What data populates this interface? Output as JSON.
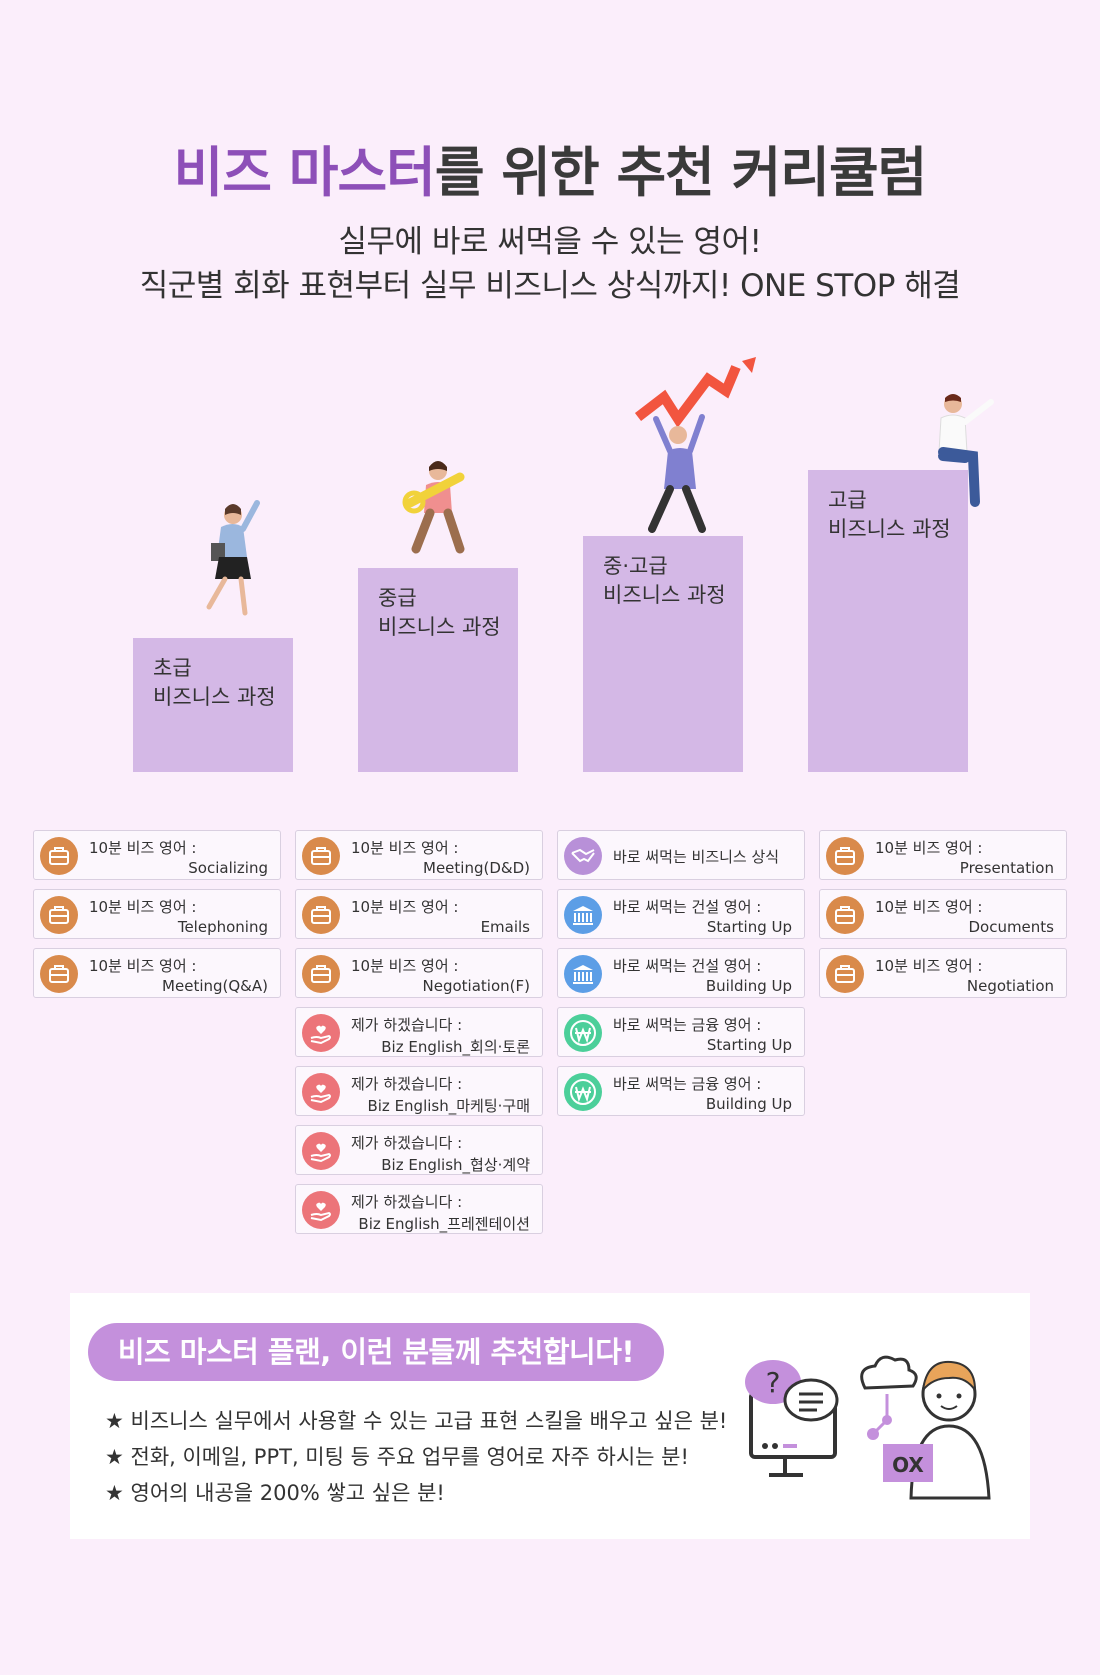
{
  "header": {
    "title_accent": "비즈 마스터",
    "title_rest": "를 위한 추천 커리큘럼",
    "subtitle_line1": "실무에 바로 써먹을 수 있는 영어!",
    "subtitle_line2": "직군별 회화 표현부터 실무 비즈니스 상식까지! ONE STOP 해결"
  },
  "levels": [
    {
      "label": "초급\n비즈니스 과정"
    },
    {
      "label": "중급\n비즈니스 과정"
    },
    {
      "label": "중·고급\n비즈니스 과정"
    },
    {
      "label": "고급\n비즈니스 과정"
    }
  ],
  "columns": [
    {
      "cards": [
        {
          "icon": "briefcase-icon",
          "color": "#d98a4b",
          "line1": "10분 비즈 영어 :",
          "line2": "Socializing"
        },
        {
          "icon": "briefcase-icon",
          "color": "#d98a4b",
          "line1": "10분 비즈 영어 :",
          "line2": "Telephoning"
        },
        {
          "icon": "briefcase-icon",
          "color": "#d98a4b",
          "line1": "10분 비즈 영어 :",
          "line2": "Meeting(Q&A)"
        }
      ]
    },
    {
      "cards": [
        {
          "icon": "briefcase-icon",
          "color": "#d98a4b",
          "line1": "10분 비즈 영어 :",
          "line2": "Meeting(D&D)"
        },
        {
          "icon": "briefcase-icon",
          "color": "#d98a4b",
          "line1": "10분 비즈 영어 :",
          "line2": "Emails"
        },
        {
          "icon": "briefcase-icon",
          "color": "#d98a4b",
          "line1": "10분 비즈 영어 :",
          "line2": "Negotiation(F)"
        },
        {
          "icon": "hand-heart-icon",
          "color": "#ec7479",
          "line1": "제가 하겠습니다 :",
          "line2": "Biz English_회의·토론"
        },
        {
          "icon": "hand-heart-icon",
          "color": "#ec7479",
          "line1": "제가 하겠습니다 :",
          "line2": "Biz English_마케팅·구매"
        },
        {
          "icon": "hand-heart-icon",
          "color": "#ec7479",
          "line1": "제가 하겠습니다 :",
          "line2": "Biz English_협상·계약"
        },
        {
          "icon": "hand-heart-icon",
          "color": "#ec7479",
          "line1": "제가 하겠습니다 :",
          "line2": "Biz English_프레젠테이션"
        }
      ]
    },
    {
      "cards": [
        {
          "icon": "handshake-icon",
          "color": "#b890d8",
          "line1": "바로 써먹는 비즈니스 상식",
          "line2": ""
        },
        {
          "icon": "bank-icon",
          "color": "#5c9ee6",
          "line1": "바로 써먹는 건설 영어 :",
          "line2": "Starting Up"
        },
        {
          "icon": "bank-icon",
          "color": "#5c9ee6",
          "line1": "바로 써먹는 건설 영어 :",
          "line2": "Building Up"
        },
        {
          "icon": "won-icon",
          "color": "#4ccf9a",
          "line1": "바로 써먹는 금융 영어 :",
          "line2": "Starting Up"
        },
        {
          "icon": "won-icon",
          "color": "#4ccf9a",
          "line1": "바로 써먹는 금융 영어 :",
          "line2": "Building Up"
        }
      ]
    },
    {
      "cards": [
        {
          "icon": "briefcase-icon",
          "color": "#d98a4b",
          "line1": "10분 비즈 영어 :",
          "line2": "Presentation"
        },
        {
          "icon": "briefcase-icon",
          "color": "#d98a4b",
          "line1": "10분 비즈 영어 :",
          "line2": "Documents"
        },
        {
          "icon": "briefcase-icon",
          "color": "#d98a4b",
          "line1": "10분 비즈 영어 :",
          "line2": "Negotiation"
        }
      ]
    }
  ],
  "recommend": {
    "heading": "비즈 마스터 플랜, 이런 분들께 추천합니다!",
    "bullets": [
      "★ 비즈니스 실무에서 사용할 수 있는 고급 표현 스킬을 배우고 싶은 분!",
      "★ 전화, 이메일, PPT, 미팅 등 주요 업무를 영어로 자주 하시는 분!",
      "★ 영어의 내공을 200% 쌓고 싶은 분!"
    ],
    "illustration_tag": "OX",
    "illustration_question": "?"
  },
  "colors": {
    "background": "#fbeefb",
    "accent_purple": "#8d4fb8",
    "step_fill": "#d4b8e6",
    "pill": "#c490dc"
  }
}
